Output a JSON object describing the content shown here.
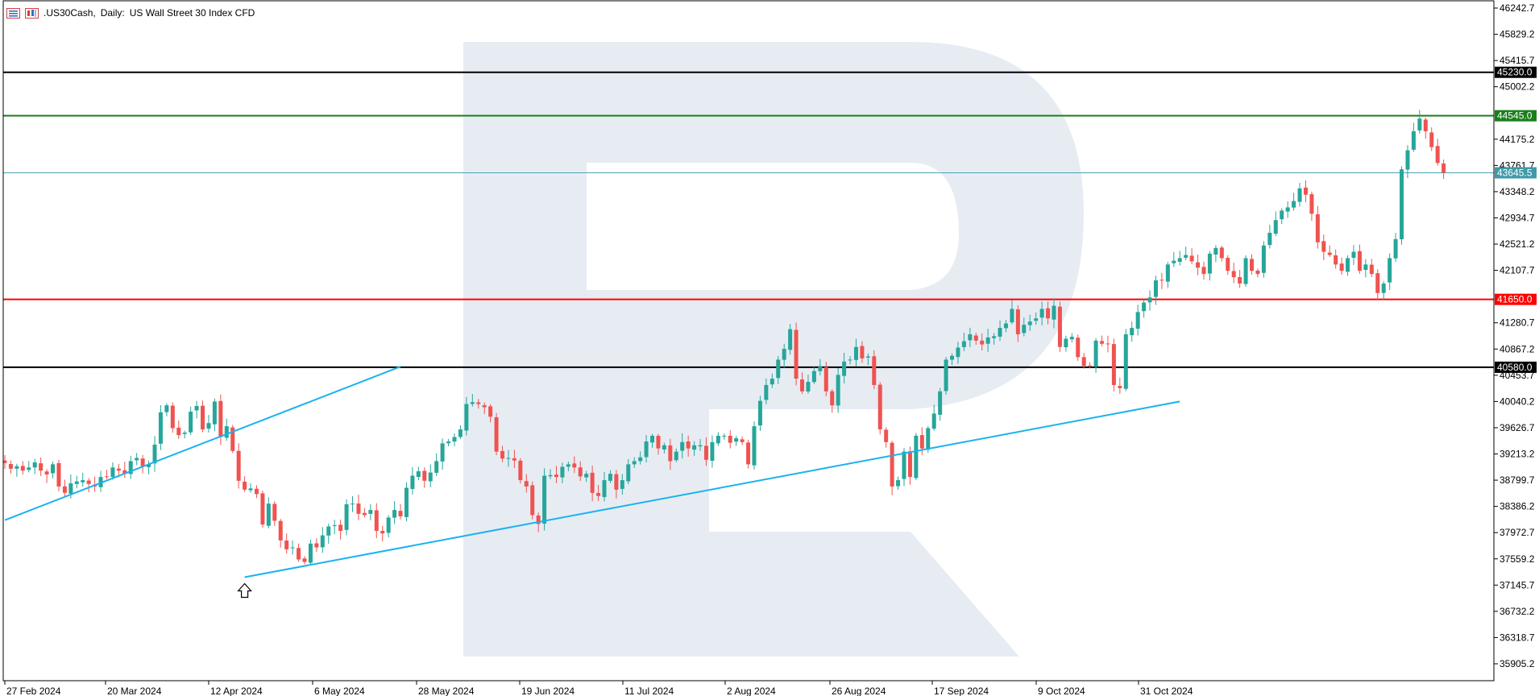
{
  "header": {
    "symbol": ".US30Cash",
    "timeframe": "Daily",
    "description": "US Wall Street 30 Index CFD",
    "icons": [
      "chart-bars-icon",
      "candles-icon"
    ]
  },
  "colors": {
    "bull": "#26a69a",
    "bear": "#ef5350",
    "trendline": "#1ab2f0",
    "current_price": "#4aa3b8",
    "current_badge": "#3f9aa8",
    "resistance_green": "#1a7f1a",
    "support_red": "#ff0000",
    "black_level": "#000000",
    "watermark": "#e7ecf3"
  },
  "chart_data": {
    "type": "candlestick",
    "title": ".US30Cash, Daily:  US Wall Street 30 Index CFD",
    "y_range": [
      35700,
      46300
    ],
    "y_ticks": [
      "46242.7",
      "45829.2",
      "45415.7",
      "45002.2",
      "44175.2",
      "43761.7",
      "43348.2",
      "42934.7",
      "42521.2",
      "42107.7",
      "41280.7",
      "40867.2",
      "40453.7",
      "40040.2",
      "39626.7",
      "39213.2",
      "38799.7",
      "38386.2",
      "37972.7",
      "37559.2",
      "37145.7",
      "36732.2",
      "36318.7",
      "35905.2"
    ],
    "x_date_labels": [
      "27 Feb 2024",
      "20 Mar 2024",
      "12 Apr 2024",
      "6 May 2024",
      "28 May 2024",
      "19 Jun 2024",
      "11 Jul 2024",
      "2 Aug 2024",
      "26 Aug 2024",
      "17 Sep 2024",
      "9 Oct 2024",
      "31 Oct 2024"
    ],
    "horizontal_levels": [
      {
        "label": "45230.0",
        "value": 45230.0,
        "color": "black_level"
      },
      {
        "label": "44545.0",
        "value": 44545.0,
        "color": "resistance_green"
      },
      {
        "label": "43645.5",
        "value": 43645.5,
        "color": "current_price"
      },
      {
        "label": "41650.0",
        "value": 41650.0,
        "color": "support_red"
      },
      {
        "label": "40580.0",
        "value": 40580.0,
        "color": "black_level"
      }
    ],
    "trendlines": [
      {
        "from": {
          "i": 0,
          "price": 38170
        },
        "to": {
          "i": 66,
          "price": 40590
        }
      },
      {
        "from": {
          "i": 40,
          "price": 37270
        },
        "to": {
          "i": 196,
          "price": 40040
        }
      }
    ],
    "arrow_marker": {
      "i": 40,
      "price": 37270,
      "direction": "up"
    },
    "ohlc_closes": [
      39070,
      38980,
      39020,
      38950,
      39000,
      39080,
      38950,
      38890,
      39050,
      38700,
      38600,
      38750,
      38780,
      38800,
      38740,
      38700,
      38850,
      38860,
      39000,
      38950,
      38900,
      39100,
      39150,
      39020,
      39050,
      39360,
      39870,
      39980,
      39620,
      39510,
      39550,
      39880,
      39970,
      39600,
      39700,
      40040,
      39480,
      39650,
      39260,
      38790,
      38650,
      38670,
      38580,
      38100,
      38430,
      38160,
      37850,
      37710,
      37740,
      37550,
      37510,
      37800,
      37740,
      37930,
      38070,
      38090,
      38000,
      38420,
      38430,
      38270,
      38250,
      38330,
      38000,
      37960,
      38210,
      38330,
      38230,
      38680,
      38870,
      38940,
      38790,
      38920,
      39100,
      39380,
      39410,
      39480,
      39600,
      40000,
      40030,
      40000,
      39950,
      39800,
      39250,
      39140,
      39150,
      39110,
      38800,
      38700,
      38250,
      38110,
      38870,
      38880,
      38850,
      39010,
      39050,
      39000,
      38860,
      38900,
      38600,
      38550,
      38800,
      38900,
      38650,
      38800,
      39050,
      39100,
      39160,
      39410,
      39500,
      39300,
      39350,
      39100,
      39250,
      39400,
      39300,
      39350,
      39350,
      39120,
      39400,
      39500,
      39500,
      39390,
      39460,
      39400,
      39050,
      39650,
      40050,
      40300,
      40400,
      40700,
      40870,
      41180,
      40400,
      40200,
      40350,
      40520,
      40600,
      40200,
      39980,
      40460,
      40670,
      40700,
      40900,
      40720,
      40750,
      40300,
      39600,
      39400,
      38700,
      38800,
      39250,
      38850,
      39500,
      39300,
      39620,
      39850,
      40200,
      40700,
      40760,
      40890,
      40990,
      41100,
      41000,
      40940,
      41050,
      41070,
      41200,
      41270,
      41500,
      41100,
      41250,
      41300,
      41350,
      41500,
      41350,
      41550,
      40900,
      41030,
      41060,
      40740,
      40600,
      40600,
      41000,
      40950,
      40950,
      40300,
      40250,
      41100,
      41200,
      41450,
      41600,
      41680,
      41950,
      41950,
      42200,
      42260,
      42300,
      42350,
      42250,
      42150,
      42050,
      42370,
      42460,
      42300,
      42100,
      42000,
      41900,
      42300,
      42100,
      42050,
      42500,
      42700,
      42900,
      43050,
      43100,
      43200,
      43400,
      43300,
      43000,
      42550,
      42400,
      42350,
      42200,
      42100,
      42300,
      42400,
      42100,
      42200,
      42050,
      41750,
      41900,
      42300,
      42600,
      43700,
      44000,
      44300,
      44500,
      44300,
      44050,
      43800,
      43645
    ]
  }
}
